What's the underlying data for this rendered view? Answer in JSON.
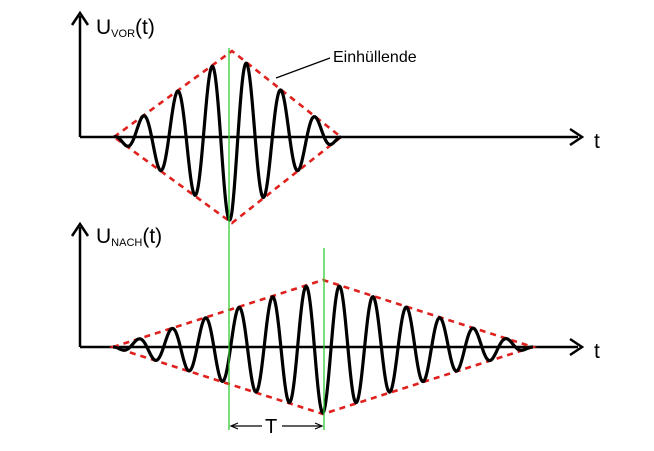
{
  "top_plot": {
    "ylabel_main": "U",
    "ylabel_sub": "VOR",
    "ylabel_arg": "(t)",
    "xlabel": "t",
    "envelope_label": "Einhüllende"
  },
  "bottom_plot": {
    "ylabel_main": "U",
    "ylabel_sub": "NACH",
    "ylabel_arg": "(t)",
    "xlabel": "t"
  },
  "period_label": "T",
  "colors": {
    "signal": "#000000",
    "envelope": "#e0201c",
    "markers": "#33cc33",
    "axes": "#000000"
  },
  "icons": [
    "arrow-up-icon",
    "arrow-right-icon"
  ]
}
